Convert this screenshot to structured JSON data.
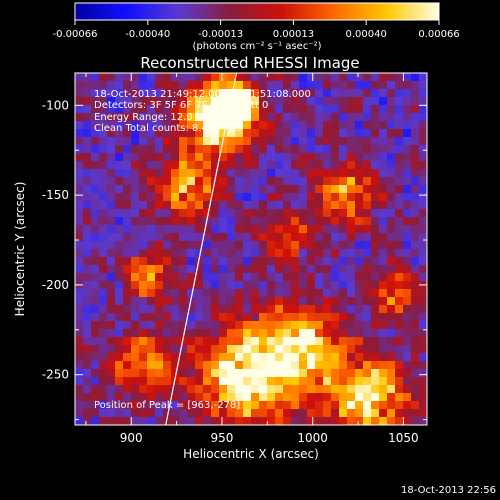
{
  "colorbar": {
    "ticks": [
      "-0.00066",
      "-0.00040",
      "-0.00013",
      "0.00013",
      "0.00040",
      "0.00066"
    ],
    "unit_label": "(photons cm⁻² s⁻¹ asec⁻²)",
    "stops": [
      "#0000a0",
      "#1010ff",
      "#5a3ad0",
      "#8a1c3c",
      "#d0100a",
      "#ff6a00",
      "#ffc800",
      "#ffffe8"
    ]
  },
  "chart_data": {
    "type": "heatmap",
    "title": "Reconstructed RHESSI Image",
    "xlabel": "Heliocentric X (arcsec)",
    "ylabel": "Heliocentric Y (arcsec)",
    "xlim": [
      869,
      1063
    ],
    "ylim": [
      -278,
      -82
    ],
    "x_ticks": [
      900,
      950,
      1000,
      1050
    ],
    "y_ticks": [
      -100,
      -150,
      -200,
      -250
    ],
    "annotations": [
      "18-Oct-2013 21:49:12.000 to 21:51:08.000",
      "Detectors: 3F 5F 6F 7F 8F 9F, Att 0",
      "Energy Range: 12.0 - 25.0 keV",
      "Clean      Total counts: 8.41E+03"
    ],
    "peak_label": "Position of Peak = [963,-278]",
    "peak": [
      963,
      -278
    ],
    "limb_line": [
      [
        919,
        -278
      ],
      [
        958,
        -82
      ]
    ],
    "bright_regions": [
      {
        "x": 947,
        "y": -108,
        "sigma": 14,
        "amp": 1.0
      },
      {
        "x": 956,
        "y": -100,
        "sigma": 9,
        "amp": 0.95
      },
      {
        "x": 930,
        "y": -145,
        "sigma": 12,
        "amp": 0.7
      },
      {
        "x": 965,
        "y": -250,
        "sigma": 20,
        "amp": 0.95
      },
      {
        "x": 1030,
        "y": -262,
        "sigma": 16,
        "amp": 0.9
      },
      {
        "x": 995,
        "y": -232,
        "sigma": 14,
        "amp": 0.75
      },
      {
        "x": 1018,
        "y": -150,
        "sigma": 12,
        "amp": 0.65
      },
      {
        "x": 910,
        "y": -195,
        "sigma": 10,
        "amp": 0.55
      },
      {
        "x": 985,
        "y": -175,
        "sigma": 10,
        "amp": 0.45
      },
      {
        "x": 905,
        "y": -245,
        "sigma": 12,
        "amp": 0.6
      },
      {
        "x": 1045,
        "y": -205,
        "sigma": 10,
        "amp": 0.5
      }
    ]
  },
  "footer": {
    "timestamp": "18-Oct-2013 22:56"
  }
}
